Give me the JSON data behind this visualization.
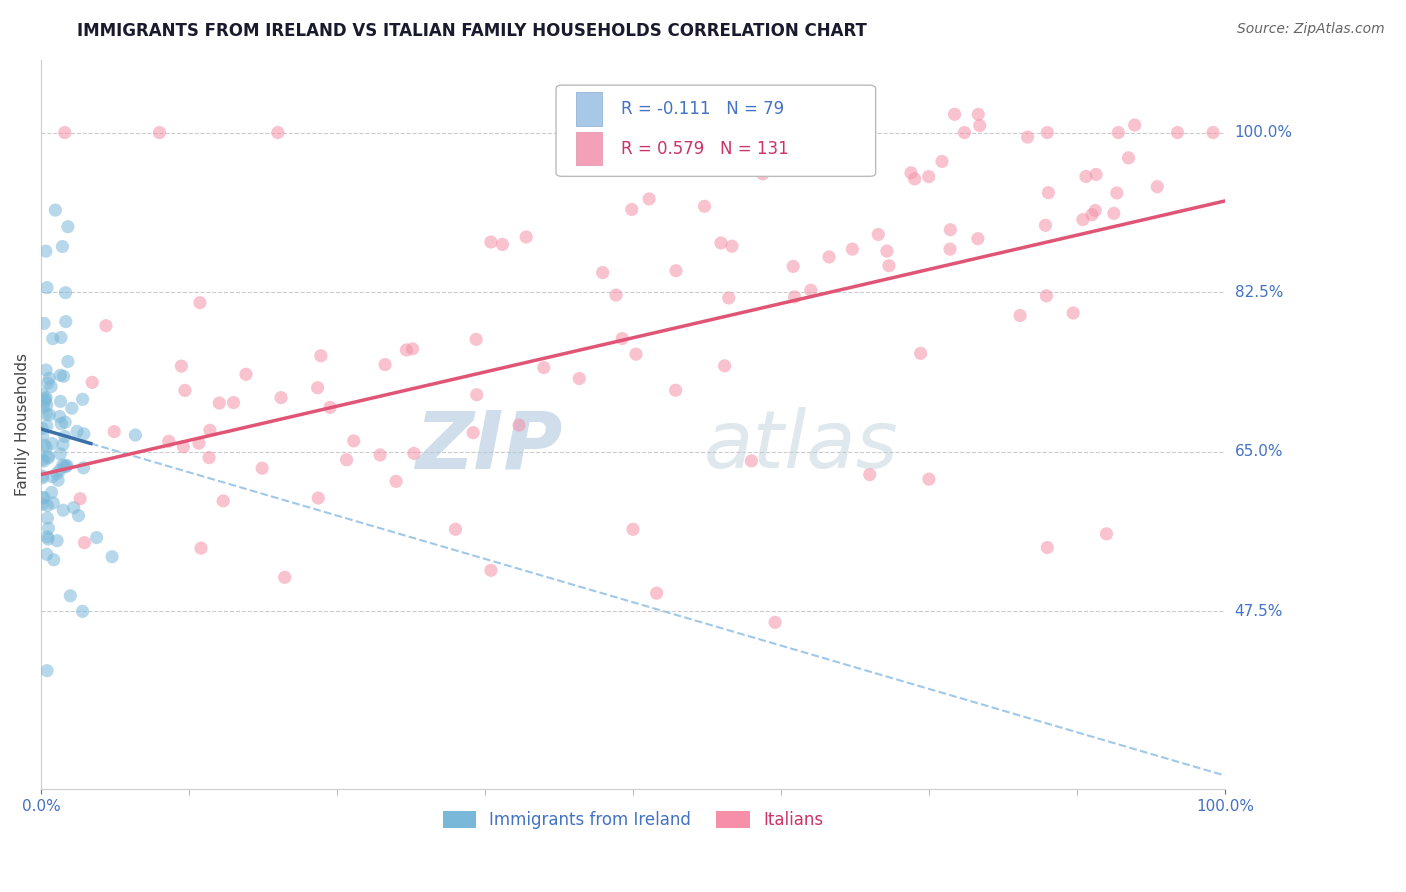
{
  "title": "IMMIGRANTS FROM IRELAND VS ITALIAN FAMILY HOUSEHOLDS CORRELATION CHART",
  "source": "Source: ZipAtlas.com",
  "ylabel": "Family Households",
  "background_color": "#ffffff",
  "ireland_color": "#7ab8d9",
  "italian_color": "#f590a8",
  "ireland_line_color": "#3a6fa8",
  "italian_line_color": "#e05575",
  "ireland_dashed_color": "#a0c8e8",
  "axis_label_color": "#4472c4",
  "grid_color": "#cccccc",
  "title_color": "#1a1a2e",
  "title_fontsize": 12,
  "source_fontsize": 10,
  "ylabel_fontsize": 11,
  "legend_label1": "Immigrants from Ireland",
  "legend_label2": "Italians",
  "legend_text1": "R = -0.111   N = 79",
  "legend_text2": "R = 0.579   N = 131",
  "legend_color1": "#4472c4",
  "legend_color2": "#cc3366",
  "legend_sq_color1": "#a8c8e8",
  "legend_sq_color2": "#f4a0b8",
  "y_ticks": [
    1.0,
    0.825,
    0.65,
    0.475
  ],
  "y_labels": [
    "100.0%",
    "82.5%",
    "65.0%",
    "47.5%"
  ],
  "ylim": [
    0.28,
    1.08
  ],
  "xlim": [
    0.0,
    1.0
  ],
  "watermark_zip": "ZIP",
  "watermark_atlas": "atlas"
}
